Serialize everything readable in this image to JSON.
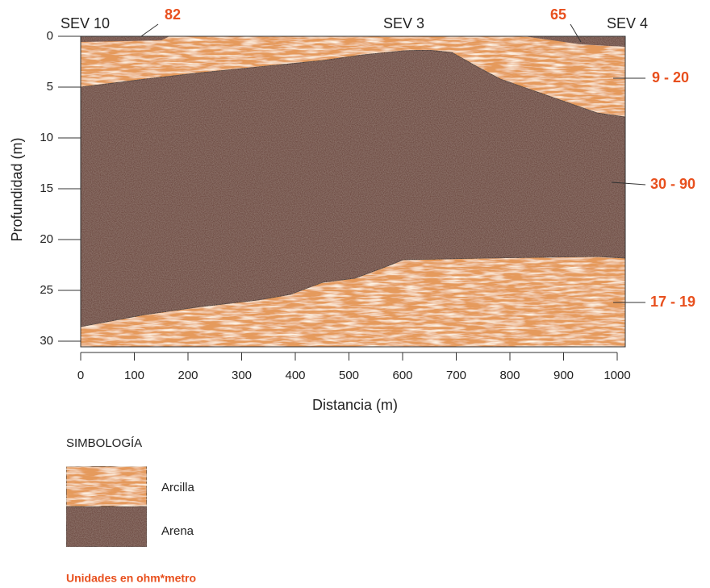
{
  "y_axis": {
    "title": "Profundidad (m)",
    "ticks": [
      0,
      5,
      10,
      15,
      20,
      25,
      30
    ]
  },
  "x_axis": {
    "title": "Distancia (m)",
    "ticks": [
      0,
      100,
      200,
      300,
      400,
      500,
      600,
      700,
      800,
      900,
      1000
    ]
  },
  "soundings": [
    {
      "label": "SEV 10",
      "value": 82
    },
    {
      "label": "SEV 3"
    },
    {
      "label": "SEV 4",
      "value": 65
    }
  ],
  "resistivity_ranges": [
    "9 - 20",
    "30 - 90",
    "17 - 19"
  ],
  "legend": {
    "title": "SIMBOLOGÍA",
    "items": [
      "Arcilla",
      "Arena"
    ]
  },
  "note": "Unidades en ohm*metro"
}
